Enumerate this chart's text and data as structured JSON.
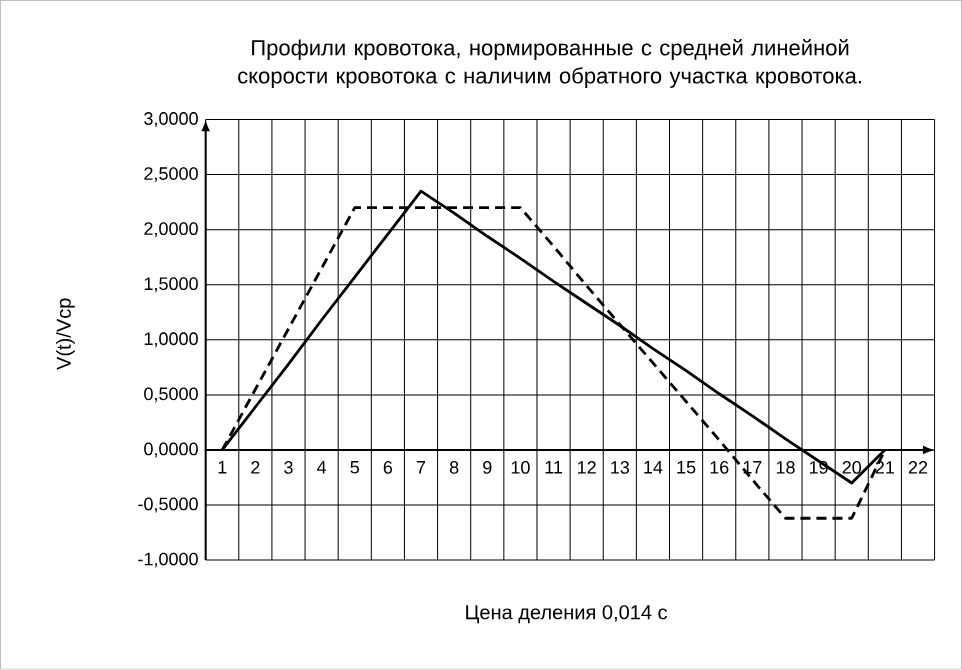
{
  "chart_data": {
    "type": "line",
    "title": "Профили кровотока, нормированные с средней линейной скорости кровотока с наличим обратного участка кровотока.",
    "xlabel": "Цена деления 0,014 с",
    "ylabel": "V(t)/Vcp",
    "categories": [
      "1",
      "2",
      "3",
      "4",
      "5",
      "6",
      "7",
      "8",
      "9",
      "10",
      "11",
      "12",
      "13",
      "14",
      "15",
      "16",
      "17",
      "18",
      "19",
      "20",
      "21",
      "22"
    ],
    "series": [
      {
        "color": "#000000",
        "line_style": "solid",
        "values": [
          0,
          0.39,
          0.78,
          1.18,
          1.57,
          1.96,
          2.35,
          2.15,
          1.94,
          1.74,
          1.53,
          1.33,
          1.13,
          0.92,
          0.72,
          0.51,
          0.31,
          0.1,
          -0.1,
          -0.3,
          0,
          null
        ]
      },
      {
        "color": "#000000",
        "line_style": "dashed",
        "values": [
          0,
          0.55,
          1.1,
          1.65,
          2.2,
          2.2,
          2.2,
          2.2,
          2.2,
          2.2,
          1.85,
          1.49,
          1.14,
          0.79,
          0.44,
          0.09,
          -0.27,
          -0.62,
          -0.62,
          -0.62,
          0,
          null
        ]
      }
    ],
    "ylim": [
      -1,
      3
    ],
    "yticks": [
      {
        "value": -1,
        "label": "-1,0000"
      },
      {
        "value": -0.5,
        "label": "-0,5000"
      },
      {
        "value": 0,
        "label": "0,0000"
      },
      {
        "value": 0.5,
        "label": "0,5000"
      },
      {
        "value": 1,
        "label": "1,0000"
      },
      {
        "value": 1.5,
        "label": "1,5000"
      },
      {
        "value": 2,
        "label": "2,0000"
      },
      {
        "value": 2.5,
        "label": "2,5000"
      },
      {
        "value": 3,
        "label": "3,0000"
      }
    ],
    "grid": true,
    "marker": "none"
  }
}
